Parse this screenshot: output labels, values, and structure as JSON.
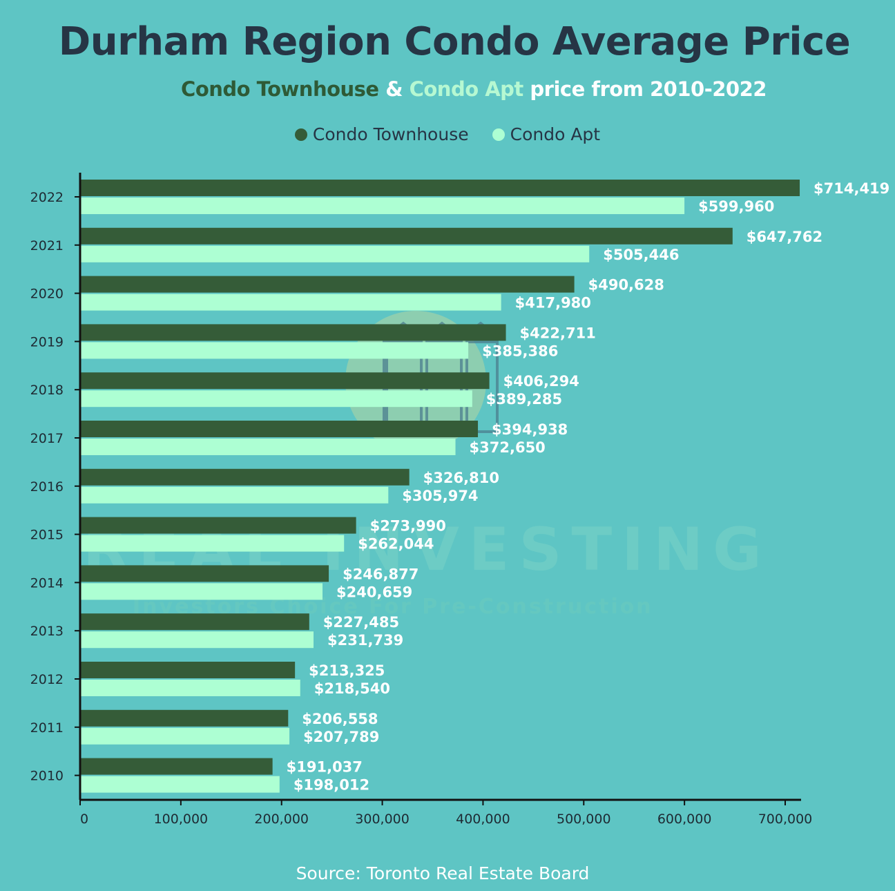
{
  "title": "Durham Region Condo Average Price",
  "subtitle": {
    "part1": "Condo Townhouse",
    "amp": " & ",
    "part2": "Condo Apt",
    "rest": " price from 2010-2022"
  },
  "legend": {
    "townhouse": "Condo Townhouse",
    "apt": "Condo Apt"
  },
  "source": "Source: Toronto Real Estate Board",
  "watermark": {
    "brand": "REAL INVESTING",
    "tagline": "Investors Choice For Pre-Construction"
  },
  "colors": {
    "background": "#5EC5C4",
    "townhouse": "#355C38",
    "apt": "#ADFFD3",
    "title": "#263545"
  },
  "chart_data": {
    "type": "bar",
    "orientation": "horizontal",
    "categories": [
      "2022",
      "2021",
      "2020",
      "2019",
      "2018",
      "2017",
      "2016",
      "2015",
      "2014",
      "2013",
      "2012",
      "2011",
      "2010"
    ],
    "series": [
      {
        "name": "Condo Townhouse",
        "values": [
          714419,
          647762,
          490628,
          422711,
          406294,
          394938,
          326810,
          273990,
          246877,
          227485,
          213325,
          206558,
          191037
        ]
      },
      {
        "name": "Condo Apt",
        "values": [
          599960,
          505446,
          417980,
          385386,
          389285,
          372650,
          305974,
          262044,
          240659,
          231739,
          218540,
          207789,
          198012
        ]
      }
    ],
    "data_labels": {
      "townhouse": [
        "$714,419",
        "$647,762",
        "$490,628",
        "$422,711",
        "$406,294",
        "$394,938",
        "$326,810",
        "$273,990",
        "$246,877",
        "$227,485",
        "$213,325",
        "$206,558",
        "$191,037"
      ],
      "apt": [
        "$599,960",
        "$505,446",
        "$417,980",
        "$385,386",
        "$389,285",
        "$372,650",
        "$305,974",
        "$262,044",
        "$240,659",
        "$231,739",
        "$218,540",
        "$207,789",
        "$198,012"
      ]
    },
    "x_ticks": [
      "0",
      "100,000",
      "200,000",
      "300,000",
      "400,000",
      "500,000",
      "600,000",
      "700,000"
    ],
    "xlim": [
      0,
      720000
    ],
    "grid": false,
    "legend_position": "top-center"
  }
}
